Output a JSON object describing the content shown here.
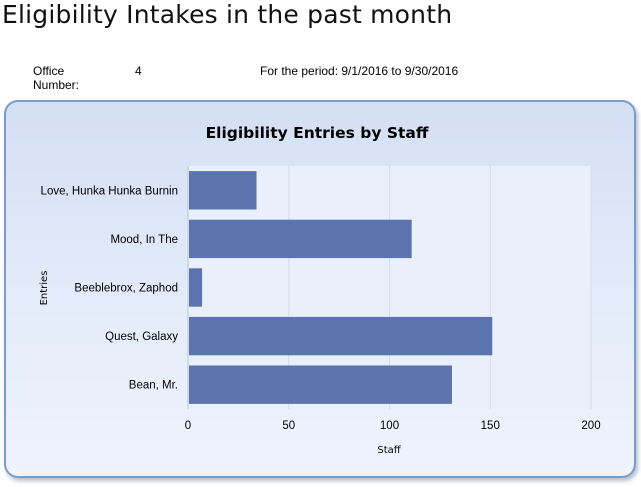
{
  "page": {
    "title": "Eligibility Intakes in the past month",
    "office_label": "Office Number:",
    "office_value": "4",
    "period_text": "For the period: 9/1/2016 to 9/30/2016"
  },
  "colors": {
    "bar": "#5b74ae",
    "panel_border": "#7d9bc9",
    "plot_bg": "#eaf0fb",
    "grid": "#d4dbe8"
  },
  "chart_data": {
    "type": "bar",
    "orientation": "horizontal",
    "title": "Eligibility Entries by Staff",
    "xlabel": "Staff",
    "ylabel": "Entries",
    "categories": [
      "Love, Hunka Hunka Burnin",
      "Mood, In The",
      "Beeblebrox, Zaphod",
      "Quest, Galaxy",
      "Bean, Mr."
    ],
    "values": [
      34,
      111,
      7,
      151,
      131
    ],
    "xlim": [
      0,
      200
    ],
    "xticks": [
      0,
      50,
      100,
      150,
      200
    ],
    "grid": true,
    "legend": "none"
  }
}
